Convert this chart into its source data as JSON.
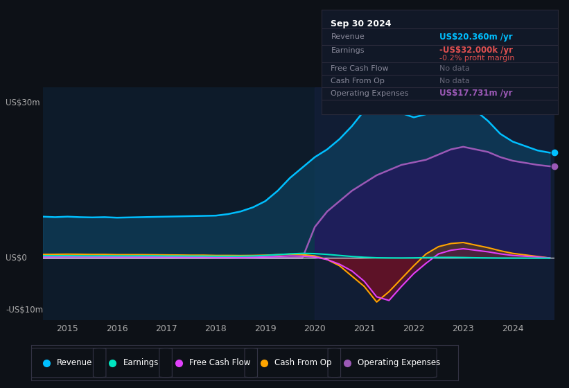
{
  "bg_color": "#0d1117",
  "plot_bg_color": "#0d1b2a",
  "title": "Sep 30 2024",
  "ylabel_top": "US$30m",
  "ylabel_zero": "US$0",
  "ylabel_bottom": "-US$10m",
  "x_ticks": [
    2015,
    2016,
    2017,
    2018,
    2019,
    2020,
    2021,
    2022,
    2023,
    2024
  ],
  "ylim": [
    -12,
    33
  ],
  "colors": {
    "revenue": "#00bfff",
    "earnings": "#00e5c0",
    "free_cash_flow": "#e040fb",
    "cash_from_op": "#ffa500",
    "operating_expenses": "#9b59b6"
  },
  "info_box_title": "Sep 30 2024",
  "info_rows": [
    {
      "label": "Revenue",
      "value": "US$20.360m /yr",
      "value_color": "#00bfff",
      "label_color": "#888899"
    },
    {
      "label": "Earnings",
      "value": "-US$32.000k /yr",
      "value_color": "#e05050",
      "label_color": "#888899"
    },
    {
      "label": "",
      "value": "-0.2% profit margin",
      "value_color": "#e05050",
      "label_color": "#888899"
    },
    {
      "label": "Free Cash Flow",
      "value": "No data",
      "value_color": "#666677",
      "label_color": "#888899"
    },
    {
      "label": "Cash From Op",
      "value": "No data",
      "value_color": "#666677",
      "label_color": "#888899"
    },
    {
      "label": "Operating Expenses",
      "value": "US$17.731m /yr",
      "value_color": "#9b59b6",
      "label_color": "#888899"
    }
  ],
  "legend_items": [
    {
      "label": "Revenue",
      "color": "#00bfff"
    },
    {
      "label": "Earnings",
      "color": "#00e5c0"
    },
    {
      "label": "Free Cash Flow",
      "color": "#e040fb"
    },
    {
      "label": "Cash From Op",
      "color": "#ffa500"
    },
    {
      "label": "Operating Expenses",
      "color": "#9b59b6"
    }
  ],
  "years": [
    2014.5,
    2014.75,
    2015.0,
    2015.25,
    2015.5,
    2015.75,
    2016.0,
    2016.25,
    2016.5,
    2016.75,
    2017.0,
    2017.25,
    2017.5,
    2017.75,
    2018.0,
    2018.25,
    2018.5,
    2018.75,
    2019.0,
    2019.25,
    2019.5,
    2019.75,
    2020.0,
    2020.25,
    2020.5,
    2020.75,
    2021.0,
    2021.25,
    2021.5,
    2021.75,
    2022.0,
    2022.25,
    2022.5,
    2022.75,
    2023.0,
    2023.25,
    2023.5,
    2023.75,
    2024.0,
    2024.5,
    2024.75
  ],
  "revenue": [
    8.0,
    7.9,
    8.0,
    7.9,
    7.85,
    7.9,
    7.8,
    7.85,
    7.9,
    7.95,
    8.0,
    8.05,
    8.1,
    8.15,
    8.2,
    8.5,
    9.0,
    9.8,
    11.0,
    13.0,
    15.5,
    17.5,
    19.5,
    21.0,
    23.0,
    25.5,
    28.5,
    30.5,
    29.5,
    28.0,
    27.2,
    27.8,
    28.5,
    29.2,
    30.0,
    28.5,
    26.5,
    24.0,
    22.5,
    20.8,
    20.36
  ],
  "earnings": [
    0.45,
    0.44,
    0.45,
    0.43,
    0.42,
    0.43,
    0.42,
    0.42,
    0.43,
    0.43,
    0.4,
    0.4,
    0.38,
    0.38,
    0.35,
    0.35,
    0.35,
    0.4,
    0.5,
    0.65,
    0.8,
    0.9,
    0.85,
    0.7,
    0.5,
    0.3,
    0.15,
    0.05,
    0.02,
    0.01,
    0.03,
    0.08,
    0.12,
    0.13,
    0.1,
    0.05,
    0.02,
    -0.01,
    -0.02,
    -0.03,
    -0.032
  ],
  "free_cash_flow": [
    0.25,
    0.25,
    0.28,
    0.27,
    0.25,
    0.25,
    0.22,
    0.22,
    0.22,
    0.22,
    0.2,
    0.18,
    0.18,
    0.18,
    0.15,
    0.15,
    0.12,
    0.15,
    0.2,
    0.3,
    0.4,
    0.35,
    0.2,
    -0.3,
    -1.2,
    -2.5,
    -4.5,
    -7.5,
    -8.2,
    -5.5,
    -3.0,
    -1.0,
    0.8,
    1.5,
    1.8,
    1.5,
    1.2,
    0.8,
    0.5,
    0.2,
    0.0
  ],
  "cash_from_op": [
    0.7,
    0.72,
    0.75,
    0.73,
    0.7,
    0.7,
    0.65,
    0.65,
    0.65,
    0.63,
    0.6,
    0.58,
    0.55,
    0.55,
    0.5,
    0.5,
    0.48,
    0.5,
    0.55,
    0.65,
    0.75,
    0.65,
    0.4,
    -0.3,
    -1.5,
    -3.5,
    -5.5,
    -8.5,
    -6.5,
    -4.0,
    -1.5,
    0.8,
    2.2,
    2.8,
    3.0,
    2.5,
    2.0,
    1.4,
    0.9,
    0.3,
    0.0
  ],
  "operating_expenses": [
    0.0,
    0.0,
    0.0,
    0.0,
    0.0,
    0.0,
    0.0,
    0.0,
    0.0,
    0.0,
    0.0,
    0.0,
    0.0,
    0.0,
    0.0,
    0.0,
    0.0,
    0.0,
    0.0,
    0.0,
    0.0,
    0.0,
    6.0,
    9.0,
    11.0,
    13.0,
    14.5,
    16.0,
    17.0,
    18.0,
    18.5,
    19.0,
    20.0,
    21.0,
    21.5,
    21.0,
    20.5,
    19.5,
    18.8,
    18.0,
    17.731
  ]
}
